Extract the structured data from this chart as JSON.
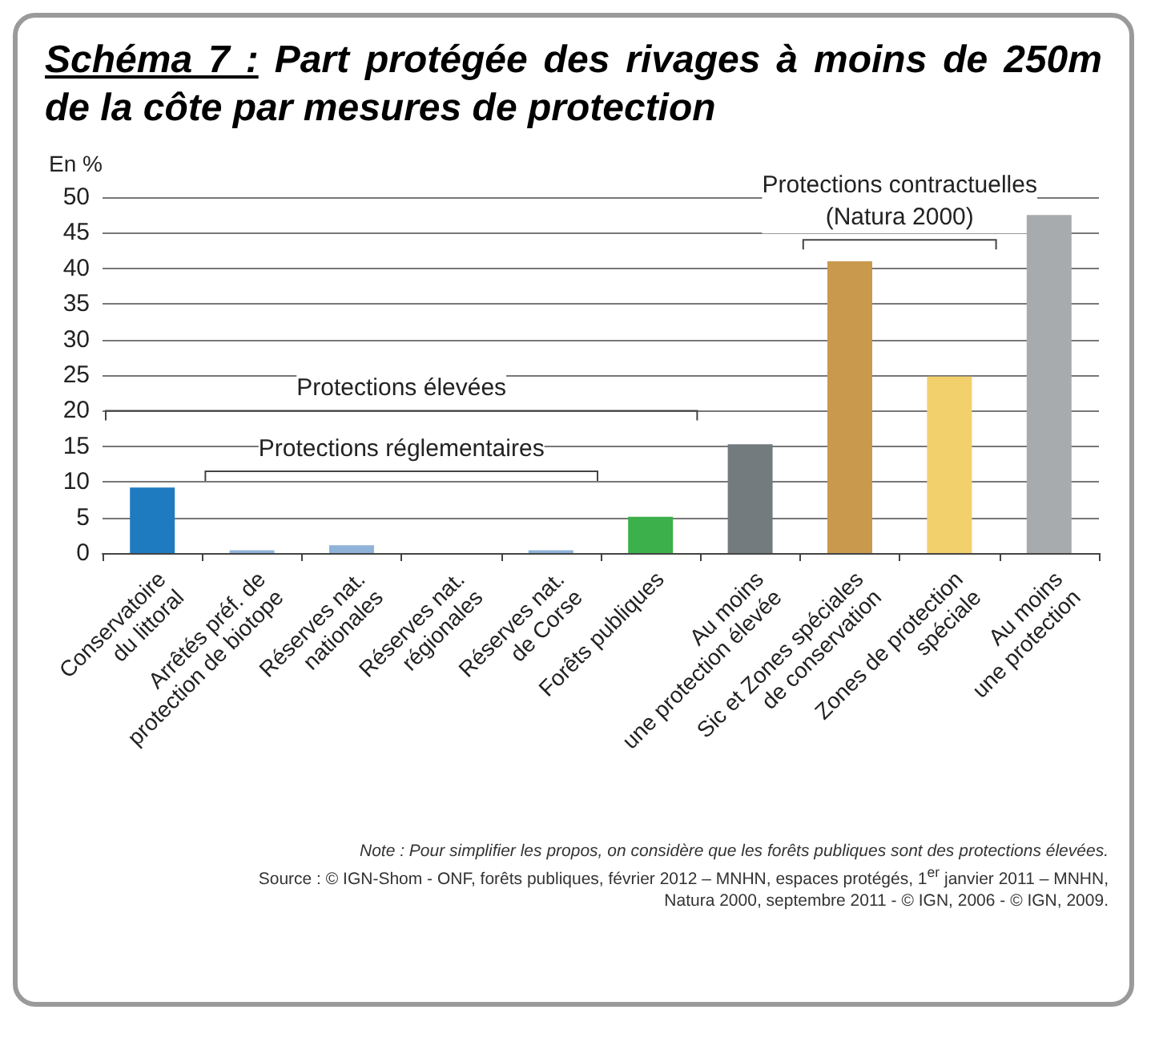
{
  "chart_data": {
    "type": "bar",
    "title": "Schéma 7 : Part protégée des rivages à moins de 250m de la côte par mesures de protection",
    "ylabel": "En %",
    "categories": [
      "Conservatoire\ndu littoral",
      "Arrêtés préf. de\nprotection de biotope",
      "Réserves nat.\nnationales",
      "Réserves nat.\nrégionales",
      "Réserves nat.\nde Corse",
      "Forêts publiques",
      "Au moins\nune protection élevée",
      "Sic et Zones spéciales\nde conservation",
      "Zones de protection\nspéciale",
      "Au moins\nune protection"
    ],
    "values": [
      9.2,
      0.4,
      1.1,
      0,
      0.4,
      5.1,
      15.3,
      41,
      24.8,
      47.5
    ],
    "colors": [
      "#1f7bc0",
      "#8fb3d9",
      "#8fb3d9",
      "#8fb3d9",
      "#8fb3d9",
      "#3cb04a",
      "#737b7f",
      "#c9994e",
      "#f2d06b",
      "#a7abad"
    ],
    "ylim": [
      0,
      50
    ],
    "yticks": [
      0,
      5,
      10,
      15,
      20,
      25,
      30,
      35,
      40,
      45,
      50
    ],
    "grid": "y",
    "annotations": [
      "Protections élevées",
      "Protections réglementaires",
      "Protections contractuelles\n(Natura 2000)",
      "Note : Pour simplifier les propos, on considère que les forêts publiques sont des protections élevées.",
      "Source : © IGN-Shom - ONF, forêts publiques, février 2012 – MNHN, espaces protégés, 1$^{er}$ janvier 2011 – MNHN, Natura 2000, septembre 2011 - © IGN, 2006 - © IGN, 2009."
    ]
  }
}
